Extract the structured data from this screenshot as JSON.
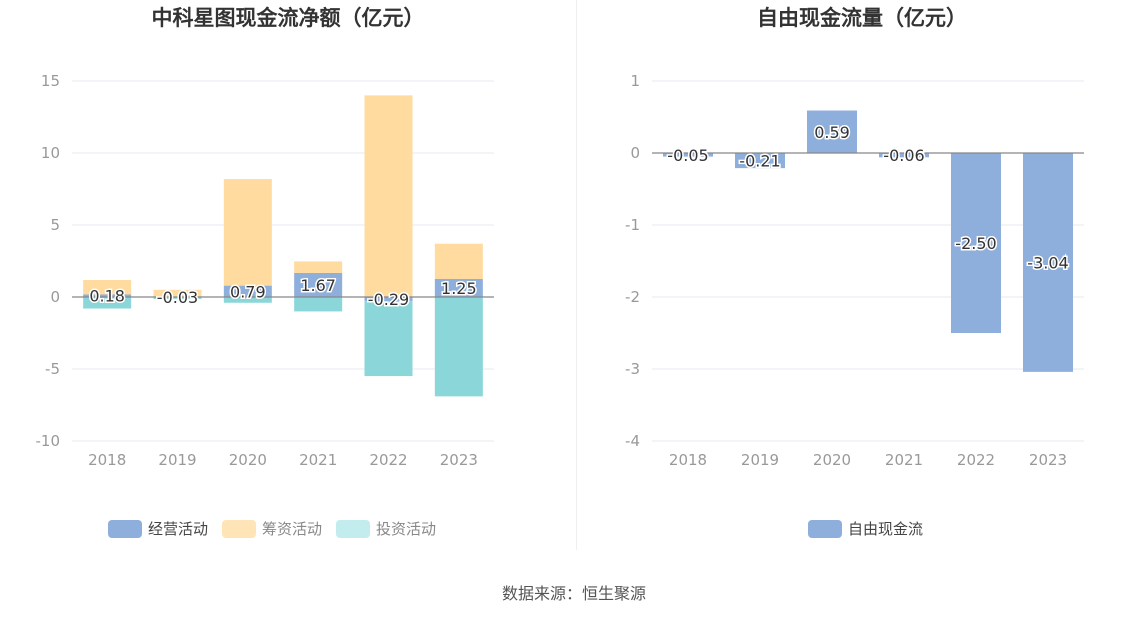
{
  "source_label": "数据来源：恒生聚源",
  "colors": {
    "operating": "#8eaedb",
    "financing": "#ffdba0",
    "investing": "#8ad6d9",
    "fcf": "#8eaedb",
    "grid": "#e6e9f0",
    "axis_label": "#999999"
  },
  "chart_data": [
    {
      "type": "bar",
      "stacked": true,
      "title": "中科星图现金流净额（亿元）",
      "categories": [
        "2018",
        "2019",
        "2020",
        "2021",
        "2022",
        "2023"
      ],
      "ylim": [
        -10,
        15
      ],
      "yticks": [
        15,
        10,
        5,
        0,
        -5,
        -10
      ],
      "grid": true,
      "legend_position": "bottom",
      "series": [
        {
          "name": "经营活动",
          "color_key": "operating",
          "values": [
            0.18,
            -0.03,
            0.79,
            1.67,
            -0.29,
            1.25
          ],
          "labels": [
            "0.18",
            "-0.03",
            "0.79",
            "1.67",
            "-0.29",
            "1.25"
          ]
        },
        {
          "name": "筹资活动",
          "color_key": "financing",
          "values": [
            1.0,
            0.5,
            7.4,
            0.8,
            14.0,
            2.45
          ]
        },
        {
          "name": "投资活动",
          "color_key": "investing",
          "values": [
            -0.8,
            -0.1,
            -0.4,
            -1.0,
            -5.2,
            -6.9
          ]
        }
      ]
    },
    {
      "type": "bar",
      "title": "自由现金流量（亿元）",
      "categories": [
        "2018",
        "2019",
        "2020",
        "2021",
        "2022",
        "2023"
      ],
      "ylim": [
        -4,
        1
      ],
      "yticks": [
        1,
        0,
        -1,
        -2,
        -3,
        -4
      ],
      "grid": true,
      "legend_position": "bottom",
      "series": [
        {
          "name": "自由现金流",
          "color_key": "fcf",
          "values": [
            -0.05,
            -0.21,
            0.59,
            -0.06,
            -2.5,
            -3.04
          ],
          "labels": [
            "-0.05",
            "-0.21",
            "0.59",
            "-0.06",
            "-2.50",
            "-3.04"
          ]
        }
      ]
    }
  ]
}
